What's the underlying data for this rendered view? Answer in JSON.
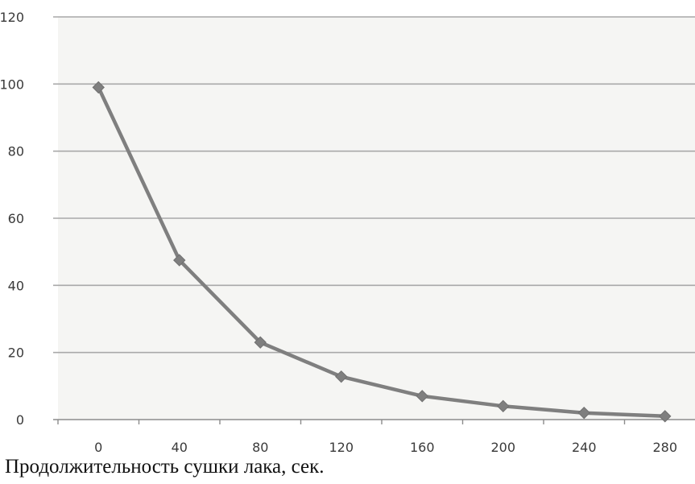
{
  "chart_data": {
    "type": "line",
    "title": "",
    "xlabel": "Продолжительность сушки лака, сек.",
    "ylabel": "",
    "categories": [
      "0",
      "40",
      "80",
      "120",
      "160",
      "200",
      "240",
      "280"
    ],
    "x": [
      0,
      40,
      80,
      120,
      160,
      200,
      240,
      280
    ],
    "series": [
      {
        "values": [
          99,
          47.5,
          23,
          12.8,
          7,
          4,
          2,
          1
        ]
      }
    ],
    "y_ticks": [
      "0",
      "20",
      "40",
      "60",
      "80",
      "100",
      "120"
    ],
    "ylim": [
      0,
      120
    ],
    "grid": true,
    "legend": "none",
    "colors": {
      "line": "#7f7f7f",
      "marker": "#7f7f7f",
      "grid": "#a9a9a9",
      "axis": "#8c8c8c",
      "plot_bg": "#f5f5f3"
    }
  }
}
